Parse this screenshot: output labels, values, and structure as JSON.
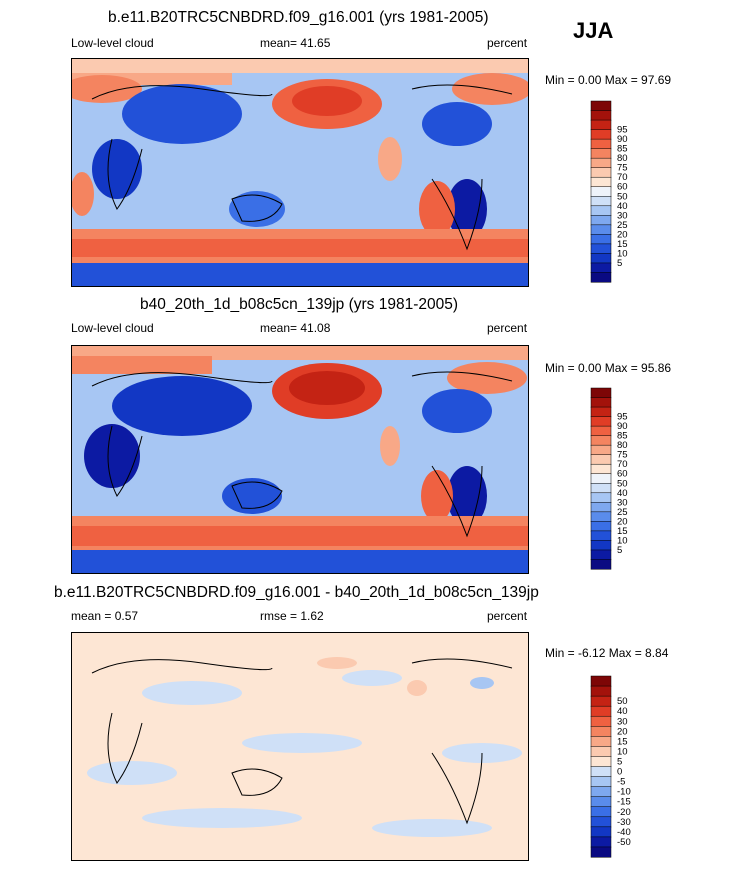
{
  "season": "JJA",
  "colors": {
    "main": [
      "#0a0a82",
      "#0c1aa3",
      "#1237c4",
      "#2251d8",
      "#3a6fe6",
      "#5a8ceb",
      "#7ea8ef",
      "#a7c6f3",
      "#cfe0f7",
      "#eef3fa",
      "#fde6d4",
      "#fbcab0",
      "#f8a887",
      "#f48460",
      "#ef6141",
      "#e03d26",
      "#c42314",
      "#a3120b",
      "#7d0606"
    ],
    "diff": [
      "#0a0a82",
      "#0c1aa3",
      "#1237c4",
      "#2251d8",
      "#3a6fe6",
      "#5a8ceb",
      "#7ea8ef",
      "#a7c6f3",
      "#cfe0f7",
      "#fde6d4",
      "#fbcab0",
      "#f8a887",
      "#f48460",
      "#ef6141",
      "#e03d26",
      "#c42314",
      "#a3120b",
      "#7d0606"
    ]
  },
  "panels": [
    {
      "title": "b.e11.B20TRC5CNBDRD.f09_g16.001 (yrs 1981-2005)",
      "left_label": "Low-level cloud",
      "center_label": "mean=  41.65",
      "units": "percent",
      "minmax": "Min =   0.00 Max =  97.69"
    },
    {
      "title": "b40_20th_1d_b08c5cn_139jp (yrs 1981-2005)",
      "left_label": "Low-level cloud",
      "center_label": "mean=  41.08",
      "units": "percent",
      "minmax": "Min =   0.00 Max =  95.86"
    },
    {
      "title": "b.e11.B20TRC5CNBDRD.f09_g16.001 - b40_20th_1d_b08c5cn_139jp",
      "left_label": "mean =   0.57",
      "center_label": "rmse =   1.62",
      "units": "percent",
      "minmax": "Min =  -6.12 Max =   8.84"
    }
  ],
  "colorbars": [
    {
      "labels": [
        "95",
        "90",
        "85",
        "80",
        "75",
        "70",
        "60",
        "50",
        "40",
        "30",
        "25",
        "20",
        "15",
        "10",
        "5"
      ]
    },
    {
      "labels": [
        "95",
        "90",
        "85",
        "80",
        "75",
        "70",
        "60",
        "50",
        "40",
        "30",
        "25",
        "20",
        "15",
        "10",
        "5"
      ]
    },
    {
      "labels": [
        "50",
        "40",
        "30",
        "20",
        "15",
        "10",
        "5",
        "0",
        "-5",
        "-10",
        "-15",
        "-20",
        "-30",
        "-40",
        "-50"
      ]
    }
  ]
}
